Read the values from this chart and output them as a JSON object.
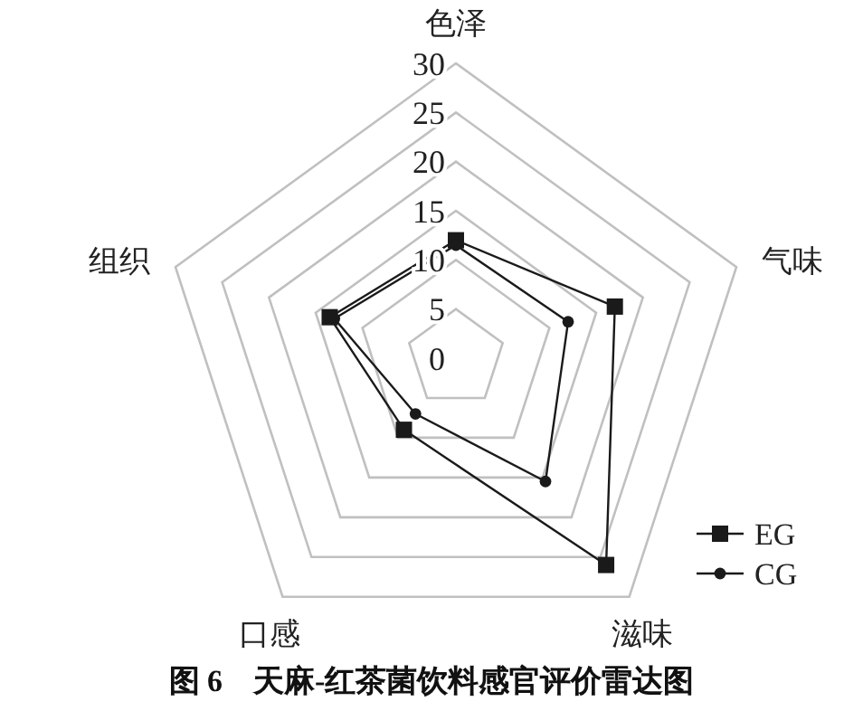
{
  "chart_data": {
    "type": "radar",
    "title": "图 6　天麻-红茶菌饮料感官评价雷达图",
    "categories": [
      "色泽",
      "气味",
      "滋味",
      "口感",
      "组织"
    ],
    "series": [
      {
        "name": "EG",
        "color": "#1a1a1a",
        "marker": "square",
        "values": [
          12,
          17,
          26,
          9,
          13.5
        ]
      },
      {
        "name": "CG",
        "color": "#1a1a1a",
        "marker": "circle",
        "values": [
          11.5,
          12,
          15.5,
          7,
          13
        ]
      }
    ],
    "ylim": [
      0,
      30
    ],
    "yticks": [
      0,
      5,
      10,
      15,
      20,
      25,
      30
    ],
    "grid": true,
    "legend": "bottom right"
  }
}
